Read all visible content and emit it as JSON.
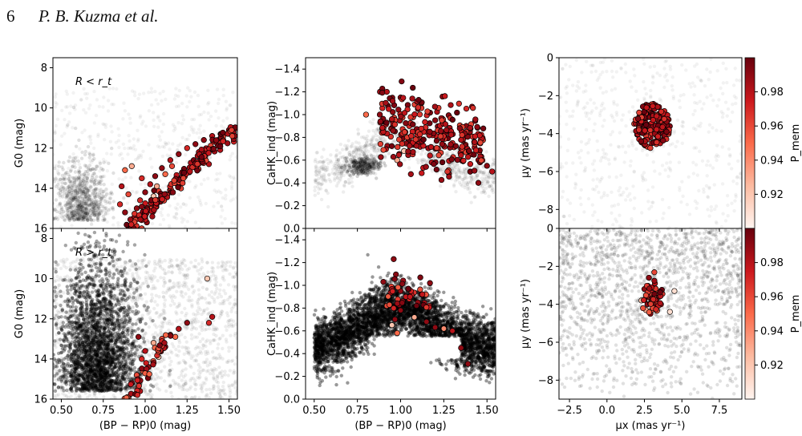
{
  "header": {
    "page_number": "6",
    "authors": "P. B. Kuzma et al."
  },
  "colors": {
    "background_density": "#000000",
    "colormap_low": "#fff5f0",
    "colormap_high": "#67000d",
    "marker_edge": "#000000"
  },
  "chart_data": [
    {
      "id": "cmd-inner",
      "type": "scatter",
      "annotation": "R < r_t",
      "xlabel": "",
      "ylabel": "G0 (mag)",
      "xlim": [
        0.45,
        1.55
      ],
      "ylim": [
        16,
        7.5
      ],
      "y_inverted": true,
      "xticks": [],
      "yticks": [
        "8",
        "10",
        "12",
        "14",
        "16"
      ],
      "members": [
        [
          0.9,
          15.9,
          0.99
        ],
        [
          0.93,
          15.5,
          0.98
        ],
        [
          0.95,
          15.0,
          0.99
        ],
        [
          0.97,
          14.6,
          0.97
        ],
        [
          1.0,
          14.2,
          0.99
        ],
        [
          1.03,
          13.8,
          0.98
        ],
        [
          1.06,
          13.4,
          0.99
        ],
        [
          1.1,
          13.0,
          0.99
        ],
        [
          1.15,
          12.6,
          0.98
        ],
        [
          1.2,
          12.3,
          0.99
        ],
        [
          1.25,
          12.0,
          0.97
        ],
        [
          1.3,
          11.8,
          0.99
        ],
        [
          1.35,
          11.6,
          0.99
        ],
        [
          1.4,
          11.4,
          0.98
        ],
        [
          1.45,
          11.3,
          0.99
        ],
        [
          1.5,
          11.1,
          0.99
        ],
        [
          1.52,
          11.0,
          0.98
        ],
        [
          0.88,
          13.1,
          0.95
        ],
        [
          0.86,
          13.9,
          0.98
        ],
        [
          0.9,
          14.3,
          0.96
        ],
        [
          0.88,
          15.2,
          0.99
        ],
        [
          0.85,
          14.8,
          0.97
        ],
        [
          1.07,
          13.9,
          0.93
        ],
        [
          1.12,
          13.3,
          0.95
        ],
        [
          1.05,
          14.4,
          0.92
        ],
        [
          1.38,
          12.8,
          0.98
        ],
        [
          1.01,
          15.7,
          0.99
        ],
        [
          1.16,
          12.9,
          0.96
        ],
        [
          0.98,
          13.5,
          0.97
        ],
        [
          1.32,
          12.2,
          0.98
        ],
        [
          0.92,
          12.9,
          0.93
        ]
      ],
      "background": "dense field distribution (not labelled)"
    },
    {
      "id": "caHK-inner",
      "type": "scatter",
      "xlabel": "",
      "ylabel": "CaHK_ind (mag)",
      "xlim": [
        0.45,
        1.55
      ],
      "ylim": [
        0.0,
        -1.5
      ],
      "y_inverted": true,
      "xticks": [],
      "yticks": [
        "−1.4",
        "−1.2",
        "−1.0",
        "−0.8",
        "−0.6",
        "−0.4",
        "−0.2",
        "0.0"
      ],
      "members": [
        [
          0.88,
          -1.0,
          0.99
        ],
        [
          0.92,
          -1.2,
          0.98
        ],
        [
          0.95,
          -0.95,
          0.99
        ],
        [
          1.0,
          -1.15,
          0.99
        ],
        [
          1.05,
          -0.9,
          0.97
        ],
        [
          1.1,
          -1.05,
          0.99
        ],
        [
          1.15,
          -0.85,
          0.98
        ],
        [
          1.2,
          -0.95,
          0.99
        ],
        [
          1.25,
          -0.8,
          0.99
        ],
        [
          1.3,
          -0.75,
          0.97
        ],
        [
          1.35,
          -0.7,
          0.99
        ],
        [
          1.4,
          -0.65,
          0.98
        ],
        [
          1.45,
          -0.6,
          0.99
        ],
        [
          1.5,
          -0.55,
          0.99
        ],
        [
          1.53,
          -0.5,
          0.98
        ],
        [
          0.8,
          -1.0,
          0.95
        ],
        [
          0.98,
          -0.6,
          0.93
        ],
        [
          1.02,
          -0.68,
          0.92
        ],
        [
          1.08,
          -0.75,
          0.94
        ],
        [
          1.18,
          -0.58,
          0.98
        ],
        [
          1.28,
          -0.48,
          0.99
        ],
        [
          0.9,
          -0.88,
          0.96
        ],
        [
          1.12,
          -1.1,
          0.99
        ],
        [
          1.38,
          -0.9,
          0.99
        ],
        [
          1.45,
          -0.4,
          0.99
        ]
      ],
      "background": "dense field distribution (not labelled)"
    },
    {
      "id": "pm-inner",
      "type": "scatter",
      "xlabel": "",
      "ylabel": "μy (mas yr⁻¹)",
      "xlim": [
        -3.2,
        9.0
      ],
      "ylim": [
        -9,
        0
      ],
      "xticks": [],
      "yticks": [
        "0",
        "−2",
        "−4",
        "−6",
        "−8"
      ],
      "members": [
        [
          2.6,
          -3.2,
          0.99
        ],
        [
          3.0,
          -3.0,
          0.98
        ],
        [
          3.4,
          -3.3,
          0.99
        ],
        [
          2.4,
          -3.6,
          0.97
        ],
        [
          2.8,
          -3.7,
          0.99
        ],
        [
          3.2,
          -3.6,
          0.99
        ],
        [
          3.6,
          -3.8,
          0.98
        ],
        [
          2.5,
          -4.0,
          0.99
        ],
        [
          2.9,
          -4.2,
          0.99
        ],
        [
          3.3,
          -4.1,
          0.97
        ],
        [
          3.7,
          -3.5,
          0.99
        ],
        [
          3.0,
          -4.5,
          0.98
        ],
        [
          2.7,
          -2.8,
          0.99
        ],
        [
          3.1,
          -2.5,
          0.99
        ],
        [
          3.5,
          -4.4,
          0.99
        ],
        [
          2.3,
          -3.3,
          0.98
        ]
      ],
      "colorbar": {
        "label": "P_mem",
        "ticks": [
          "0.92",
          "0.94",
          "0.96",
          "0.98"
        ],
        "range": [
          0.9,
          1.0
        ]
      }
    },
    {
      "id": "cmd-outer",
      "type": "scatter",
      "annotation": "R > r_t",
      "xlabel": "(BP − RP)0 (mag)",
      "ylabel": "G0 (mag)",
      "xlim": [
        0.45,
        1.55
      ],
      "ylim": [
        16,
        7.5
      ],
      "y_inverted": true,
      "xticks": [
        "0.50",
        "0.75",
        "1.00",
        "1.25",
        "1.50"
      ],
      "yticks": [
        "8",
        "10",
        "12",
        "14",
        "16"
      ],
      "members": [
        [
          1.37,
          10.0,
          0.92
        ],
        [
          1.4,
          11.9,
          0.98
        ],
        [
          1.38,
          12.2,
          0.97
        ],
        [
          1.25,
          12.2,
          0.99
        ],
        [
          1.2,
          12.5,
          0.98
        ],
        [
          1.15,
          12.8,
          0.99
        ],
        [
          1.1,
          13.0,
          0.96
        ],
        [
          1.05,
          13.2,
          0.93
        ],
        [
          1.12,
          13.4,
          0.99
        ],
        [
          1.0,
          13.6,
          0.98
        ],
        [
          0.98,
          14.0,
          0.97
        ],
        [
          1.02,
          14.4,
          0.99
        ],
        [
          0.95,
          14.8,
          0.96
        ],
        [
          0.92,
          15.2,
          0.99
        ],
        [
          0.97,
          15.6,
          0.98
        ],
        [
          0.9,
          15.9,
          0.99
        ],
        [
          1.08,
          13.9,
          0.92
        ],
        [
          1.18,
          12.9,
          0.95
        ],
        [
          0.96,
          12.9,
          0.99
        ]
      ]
    },
    {
      "id": "caHK-outer",
      "type": "scatter",
      "xlabel": "(BP − RP)0 (mag)",
      "ylabel": "CaHK_ind (mag)",
      "xlim": [
        0.45,
        1.55
      ],
      "ylim": [
        0.0,
        -1.5
      ],
      "y_inverted": true,
      "xticks": [
        "0.50",
        "0.75",
        "1.00",
        "1.25",
        "1.50"
      ],
      "yticks": [
        "−1.4",
        "−1.2",
        "−1.0",
        "−0.8",
        "−0.6",
        "−0.4",
        "−0.2",
        "0.0"
      ],
      "members": [
        [
          0.96,
          -1.23,
          0.99
        ],
        [
          0.9,
          -1.03,
          0.99
        ],
        [
          0.95,
          -0.98,
          0.98
        ],
        [
          1.0,
          -0.95,
          0.99
        ],
        [
          1.05,
          -0.88,
          0.97
        ],
        [
          1.1,
          -0.85,
          0.99
        ],
        [
          0.92,
          -0.82,
          0.96
        ],
        [
          1.0,
          -0.78,
          0.99
        ],
        [
          1.08,
          -0.72,
          0.93
        ],
        [
          1.15,
          -0.68,
          0.99
        ],
        [
          0.95,
          -0.65,
          0.92
        ],
        [
          1.2,
          -0.63,
          0.99
        ],
        [
          1.25,
          -0.62,
          0.94
        ],
        [
          1.3,
          -0.6,
          0.98
        ],
        [
          1.35,
          -0.45,
          0.99
        ],
        [
          1.39,
          -0.31,
          0.99
        ],
        [
          1.17,
          -1.02,
          0.99
        ],
        [
          0.98,
          -0.58,
          0.95
        ]
      ]
    },
    {
      "id": "pm-outer",
      "type": "scatter",
      "xlabel": "μx (mas yr⁻¹)",
      "ylabel": "μy (mas yr⁻¹)",
      "xlim": [
        -3.2,
        9.0
      ],
      "ylim": [
        -9,
        0
      ],
      "xticks": [
        "−2.5",
        "0.0",
        "2.5",
        "5.0",
        "7.5"
      ],
      "yticks": [
        "0",
        "−2",
        "−4",
        "−6",
        "−8"
      ],
      "members": [
        [
          2.8,
          -2.6,
          0.99
        ],
        [
          3.2,
          -2.9,
          0.98
        ],
        [
          2.5,
          -3.2,
          0.99
        ],
        [
          3.0,
          -3.4,
          0.97
        ],
        [
          3.5,
          -3.6,
          0.99
        ],
        [
          2.3,
          -3.8,
          0.92
        ],
        [
          2.7,
          -4.0,
          0.99
        ],
        [
          3.1,
          -4.2,
          0.96
        ],
        [
          3.6,
          -4.0,
          0.98
        ],
        [
          2.9,
          -4.5,
          0.99
        ],
        [
          3.3,
          -3.8,
          0.99
        ],
        [
          4.5,
          -3.3,
          0.91
        ],
        [
          4.2,
          -4.4,
          0.91
        ],
        [
          2.6,
          -4.3,
          0.93
        ]
      ],
      "colorbar": {
        "label": "P_mem",
        "ticks": [
          "0.92",
          "0.94",
          "0.96",
          "0.98"
        ],
        "range": [
          0.9,
          1.0
        ]
      }
    }
  ]
}
